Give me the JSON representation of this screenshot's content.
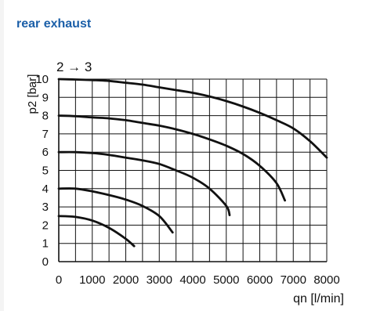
{
  "page": {
    "title": "rear exhaust",
    "accent_color": "#1b5fa8"
  },
  "chart_data": {
    "type": "line",
    "annotation": "2 → 3",
    "ylabel": "p2 [bar]",
    "xlabel": "qn [l/min]",
    "xlim": [
      0,
      8000
    ],
    "ylim": [
      0,
      10
    ],
    "xticks": [
      "0",
      "1000",
      "2000",
      "3000",
      "4000",
      "5000",
      "6000",
      "7000",
      "8000"
    ],
    "yticks": [
      "0",
      "1",
      "2",
      "3",
      "4",
      "5",
      "6",
      "7",
      "8",
      "9",
      "10"
    ],
    "grid": true,
    "line_color": "#111111",
    "series": [
      {
        "x": [
          0,
          500,
          1000,
          1500,
          2000,
          2250
        ],
        "y": [
          2.5,
          2.45,
          2.25,
          1.85,
          1.25,
          0.85
        ]
      },
      {
        "x": [
          0,
          500,
          1000,
          1500,
          2000,
          2500,
          3000,
          3400
        ],
        "y": [
          4.0,
          4.0,
          3.85,
          3.65,
          3.4,
          3.05,
          2.5,
          1.6
        ]
      },
      {
        "x": [
          0,
          500,
          1000,
          1500,
          2000,
          2500,
          3000,
          3500,
          4000,
          4500,
          5000,
          5100
        ],
        "y": [
          6.0,
          6.0,
          5.95,
          5.85,
          5.7,
          5.55,
          5.35,
          5.0,
          4.6,
          4.0,
          3.05,
          2.55
        ]
      },
      {
        "x": [
          0,
          500,
          1000,
          1500,
          2000,
          2500,
          3000,
          3500,
          4000,
          4500,
          5000,
          5500,
          6000,
          6500,
          6750
        ],
        "y": [
          8.0,
          7.97,
          7.9,
          7.85,
          7.75,
          7.6,
          7.45,
          7.25,
          7.0,
          6.7,
          6.35,
          5.9,
          5.25,
          4.3,
          3.35
        ]
      },
      {
        "x": [
          0,
          500,
          1000,
          1500,
          2000,
          2500,
          3000,
          3500,
          4000,
          4500,
          5000,
          5500,
          6000,
          6500,
          7000,
          7500,
          8000
        ],
        "y": [
          10.0,
          9.98,
          9.95,
          9.9,
          9.8,
          9.7,
          9.55,
          9.4,
          9.25,
          9.05,
          8.8,
          8.5,
          8.15,
          7.75,
          7.3,
          6.6,
          5.7
        ]
      }
    ]
  }
}
